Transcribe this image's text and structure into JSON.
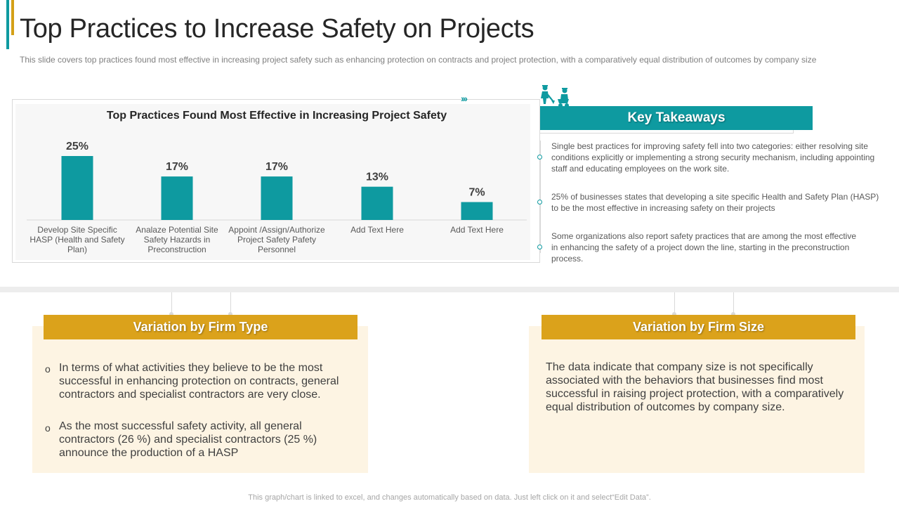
{
  "title": "Top Practices to Increase Safety on Projects",
  "subtitle": "This slide covers top practices found most effective in increasing project safety such as enhancing protection on contracts and project protection, with a comparatively equal distribution of outcomes by company size",
  "colors": {
    "teal": "#0e9aa0",
    "gold": "#dba21b",
    "cream": "#fdf4e3"
  },
  "chart_data": {
    "type": "bar",
    "title": "Top Practices Found Most Effective in Increasing Project Safety",
    "categories": [
      "Develop Site Specific HASP (Health and Safety Plan)",
      "Analaze Potential Site Safety Hazards in Preconstruction",
      "Appoint /Assign/Authorize Project Safety Pafety Personnel",
      "Add Text Here",
      "Add Text Here"
    ],
    "category_lines": [
      [
        "Develop Site Specific",
        "HASP (Health and Safety",
        "Plan)"
      ],
      [
        "Analaze Potential Site",
        "Safety Hazards in",
        "Preconstruction"
      ],
      [
        "Appoint /Assign/Authorize",
        "Project Safety Pafety",
        "Personnel"
      ],
      [
        "Add Text Here"
      ],
      [
        "Add Text Here"
      ]
    ],
    "values": [
      25,
      17,
      17,
      13,
      7
    ],
    "value_labels": [
      "25%",
      "17%",
      "17%",
      "13%",
      "7%"
    ],
    "unit": "%",
    "xlabel": "",
    "ylabel": "",
    "ylim": [
      0,
      25
    ],
    "grid": false,
    "legend": "none"
  },
  "key_takeaways": {
    "header": "Key Takeaways",
    "icon": "construction-workers-icon",
    "items": [
      "Single best practices for improving safety fell into two categories: either resolving site conditions explicitly or implementing a strong security mechanism, including appointing staff and educating employees on the work site.",
      "25% of businesses states that developing a site specific Health and Safety Plan (HASP) to be the most effective in increasing safety on their projects",
      "Some organizations also report safety practices that are among the most effective in enhancing the safety of a project down the line, starting in the preconstruction process."
    ]
  },
  "firm_type": {
    "header": "Variation by Firm Type",
    "bullet_symbol": "o",
    "bullets": [
      "In terms of what activities they believe to be the most successful in enhancing protection on contracts, general contractors and specialist contractors are very close.",
      "As the most successful safety activity, all general contractors (26 %) and specialist contractors (25 %) announce the production of a HASP"
    ]
  },
  "firm_size": {
    "header": "Variation by Firm Size",
    "text": "The data indicate that company size is not specifically associated with the behaviors that businesses find most successful in raising project protection, with a comparatively equal distribution of outcomes by company size."
  },
  "footer": "This graph/chart is linked to excel, and changes automatically based on data. Just left click on it and select“Edit Data”."
}
